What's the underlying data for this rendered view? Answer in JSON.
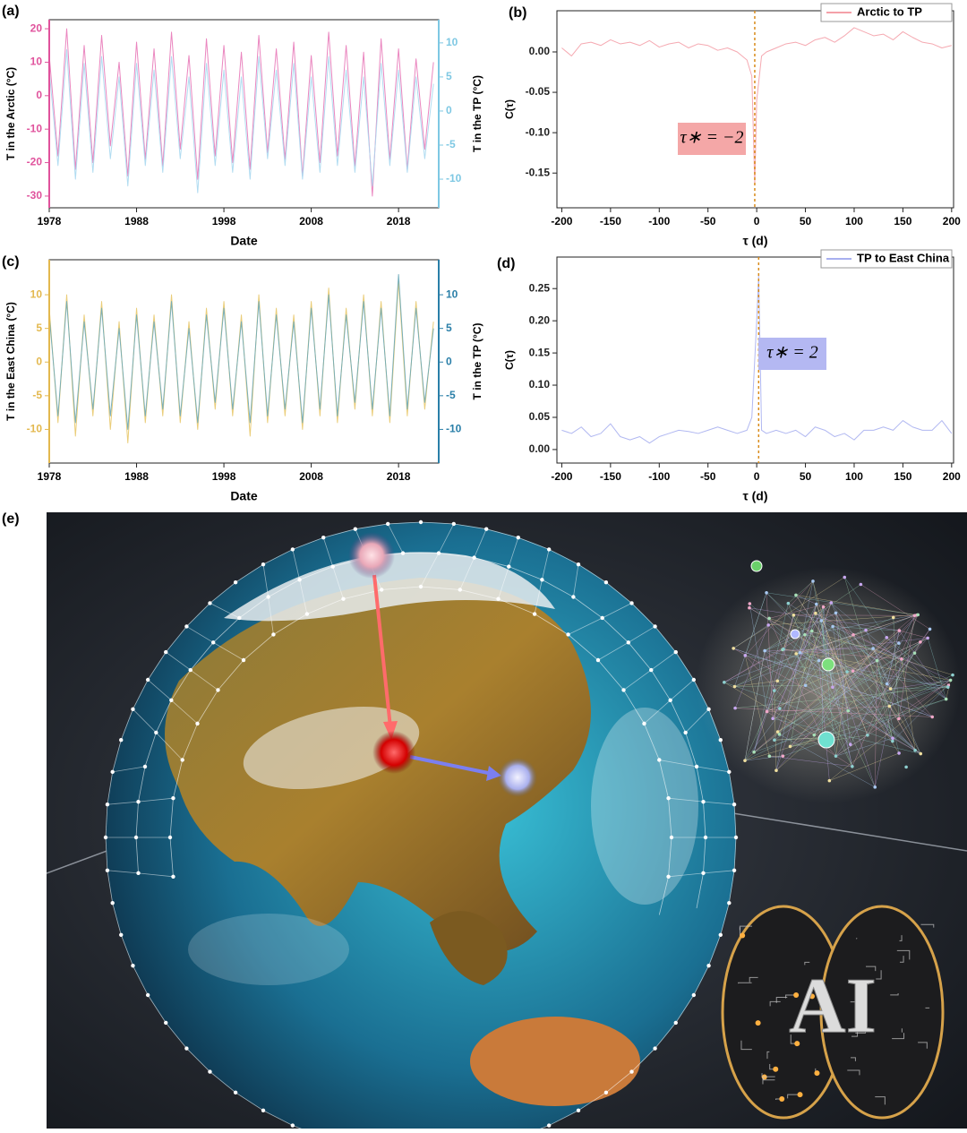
{
  "chart_data": [
    {
      "type": "line",
      "panel_label": "(a)",
      "x_label": "Date",
      "y_label": "T in the Arctic (°C)",
      "y2_label": "T in the TP (°C)",
      "y_color": "#e0529c",
      "y2_color": "#7ec8e3",
      "xlim": [
        1978,
        2022.6
      ],
      "xticks": [
        1978,
        1988,
        1998,
        2008,
        2018
      ],
      "ylim": [
        -33.5,
        22.7
      ],
      "yticks": [
        20,
        10,
        0,
        -10,
        -20,
        -30
      ],
      "y2lim": [
        -14.2,
        13.4
      ],
      "y2ticks": [
        10,
        5,
        0,
        -5,
        -10
      ],
      "x": [
        1978,
        1979,
        1980,
        1981,
        1982,
        1983,
        1984,
        1985,
        1986,
        1987,
        1988,
        1989,
        1990,
        1991,
        1992,
        1993,
        1994,
        1995,
        1996,
        1997,
        1998,
        1999,
        2000,
        2001,
        2002,
        2003,
        2004,
        2005,
        2006,
        2007,
        2008,
        2009,
        2010,
        2011,
        2012,
        2013,
        2014,
        2015,
        2016,
        2017,
        2018,
        2019,
        2020,
        2021,
        2022
      ],
      "series": [
        {
          "color": "#e879b8",
          "values": [
            12,
            -18,
            20,
            -22,
            15,
            -20,
            18,
            -15,
            10,
            -24,
            16,
            -19,
            14,
            -21,
            19,
            -16,
            12,
            -25,
            17,
            -18,
            15,
            -20,
            13,
            -22,
            18,
            -17,
            14,
            -19,
            16,
            -24,
            12,
            -20,
            19,
            -18,
            15,
            -21,
            13,
            -30,
            17,
            -19,
            14,
            -22,
            11,
            -16,
            10
          ]
        },
        {
          "color": "#a9d8f0",
          "axis": "y2",
          "values": [
            6,
            -8,
            9,
            -10,
            7,
            -9,
            8,
            -7,
            5,
            -11,
            7,
            -8,
            6,
            -9,
            8,
            -7,
            5,
            -12,
            7,
            -8,
            6,
            -9,
            5,
            -10,
            8,
            -7,
            6,
            -8,
            7,
            -10,
            5,
            -9,
            8,
            -8,
            6,
            -9,
            5,
            -11,
            7,
            -8,
            6,
            -9,
            5,
            -7,
            4
          ]
        }
      ]
    },
    {
      "type": "line",
      "panel_label": "(b)",
      "x_label": "τ (d)",
      "y_label": "C(τ)",
      "legend": "upper right",
      "xlim": [
        -205,
        202
      ],
      "xticks": [
        -200,
        -150,
        -100,
        -50,
        0,
        50,
        100,
        150,
        200
      ],
      "ylim": [
        -0.193,
        0.051
      ],
      "yticks": [
        {
          "value": 0,
          "label": "0.00"
        },
        {
          "value": -0.05,
          "label": "-0.05"
        },
        {
          "value": -0.1,
          "label": "-0.10"
        },
        {
          "value": -0.15,
          "label": "-0.15"
        }
      ],
      "marker_x": -2,
      "annotation": "τ∗ = −2",
      "annotation_color": "#f4a7a7",
      "x": [
        -200,
        -190,
        -180,
        -170,
        -160,
        -150,
        -140,
        -130,
        -120,
        -110,
        -100,
        -90,
        -80,
        -70,
        -60,
        -50,
        -40,
        -30,
        -20,
        -10,
        -5,
        -2,
        0,
        5,
        10,
        20,
        30,
        40,
        50,
        60,
        70,
        80,
        90,
        100,
        110,
        120,
        130,
        140,
        150,
        160,
        170,
        180,
        190,
        200
      ],
      "series": [
        {
          "name": "Arctic to TP",
          "color": "#f4a0a8",
          "values": [
            0.005,
            -0.005,
            0.01,
            0.012,
            0.008,
            0.015,
            0.01,
            0.012,
            0.008,
            0.014,
            0.006,
            0.01,
            0.012,
            0.005,
            0.01,
            0.008,
            0.002,
            0.005,
            0.0,
            -0.01,
            -0.03,
            -0.165,
            -0.06,
            -0.005,
            0.0,
            0.005,
            0.01,
            0.012,
            0.008,
            0.015,
            0.018,
            0.012,
            0.02,
            0.03,
            0.025,
            0.02,
            0.022,
            0.015,
            0.025,
            0.018,
            0.012,
            0.01,
            0.005,
            0.008
          ]
        }
      ]
    },
    {
      "type": "line",
      "panel_label": "(c)",
      "x_label": "Date",
      "y_label": "T in the East China (°C)",
      "y2_label": "T in the TP (°C)",
      "y_color": "#e3b84e",
      "y2_color": "#2a7fa8",
      "xlim": [
        1978,
        2022.6
      ],
      "xticks": [
        1978,
        1988,
        1998,
        2008,
        2018
      ],
      "ylim": [
        -15,
        15.2
      ],
      "yticks": [
        10,
        5,
        0,
        -5,
        -10
      ],
      "y2lim": [
        -15,
        15.2
      ],
      "y2ticks": [
        10,
        5,
        0,
        -5,
        -10
      ],
      "x": [
        1978,
        1979,
        1980,
        1981,
        1982,
        1983,
        1984,
        1985,
        1986,
        1987,
        1988,
        1989,
        1990,
        1991,
        1992,
        1993,
        1994,
        1995,
        1996,
        1997,
        1998,
        1999,
        2000,
        2001,
        2002,
        2003,
        2004,
        2005,
        2006,
        2007,
        2008,
        2009,
        2010,
        2011,
        2012,
        2013,
        2014,
        2015,
        2016,
        2017,
        2018,
        2019,
        2020,
        2021,
        2022
      ],
      "series": [
        {
          "color": "#e8c86a",
          "values": [
            8,
            -9,
            10,
            -11,
            7,
            -8,
            9,
            -10,
            6,
            -12,
            8,
            -9,
            7,
            -8,
            10,
            -9,
            6,
            -10,
            8,
            -7,
            9,
            -8,
            7,
            -11,
            10,
            -9,
            8,
            -8,
            7,
            -10,
            9,
            -8,
            11,
            -9,
            8,
            -7,
            10,
            -8,
            9,
            -9,
            12,
            -8,
            9,
            -7,
            6
          ]
        },
        {
          "color": "#6aa8b8",
          "axis": "y2",
          "values": [
            7,
            -8,
            9,
            -9,
            6,
            -7,
            8,
            -8,
            5,
            -10,
            7,
            -8,
            6,
            -7,
            9,
            -8,
            5,
            -9,
            7,
            -6,
            8,
            -7,
            6,
            -9,
            9,
            -8,
            7,
            -7,
            6,
            -9,
            8,
            -7,
            10,
            -8,
            7,
            -6,
            9,
            -7,
            8,
            -8,
            13,
            -7,
            8,
            -6,
            5
          ]
        }
      ]
    },
    {
      "type": "line",
      "panel_label": "(d)",
      "x_label": "τ (d)",
      "y_label": "C(τ)",
      "legend": "upper right",
      "xlim": [
        -205,
        202
      ],
      "xticks": [
        -200,
        -150,
        -100,
        -50,
        0,
        50,
        100,
        150,
        200
      ],
      "ylim": [
        -0.021,
        0.299
      ],
      "yticks": [
        {
          "value": 0,
          "label": "0.00"
        },
        {
          "value": 0.05,
          "label": "0.05"
        },
        {
          "value": 0.1,
          "label": "0.10"
        },
        {
          "value": 0.15,
          "label": "0.15"
        },
        {
          "value": 0.2,
          "label": "0.20"
        },
        {
          "value": 0.25,
          "label": "0.25"
        }
      ],
      "marker_x": 2,
      "annotation": "τ∗ = 2",
      "annotation_color": "#b4b8f2",
      "x": [
        -200,
        -190,
        -180,
        -170,
        -160,
        -150,
        -140,
        -130,
        -120,
        -110,
        -100,
        -90,
        -80,
        -70,
        -60,
        -50,
        -40,
        -30,
        -20,
        -10,
        -5,
        0,
        2,
        5,
        10,
        20,
        30,
        40,
        50,
        60,
        70,
        80,
        90,
        100,
        110,
        120,
        130,
        140,
        150,
        160,
        170,
        180,
        190,
        200
      ],
      "series": [
        {
          "name": "TP to East China",
          "color": "#a8b0f0",
          "values": [
            0.03,
            0.025,
            0.035,
            0.02,
            0.025,
            0.04,
            0.02,
            0.015,
            0.02,
            0.01,
            0.02,
            0.025,
            0.03,
            0.028,
            0.025,
            0.03,
            0.035,
            0.03,
            0.025,
            0.03,
            0.05,
            0.2,
            0.27,
            0.03,
            0.025,
            0.03,
            0.025,
            0.03,
            0.02,
            0.035,
            0.03,
            0.02,
            0.025,
            0.015,
            0.03,
            0.03,
            0.035,
            0.03,
            0.045,
            0.035,
            0.03,
            0.03,
            0.045,
            0.025
          ]
        }
      ]
    }
  ],
  "illustration": {
    "panel_label": "(e)",
    "text": "AI"
  }
}
